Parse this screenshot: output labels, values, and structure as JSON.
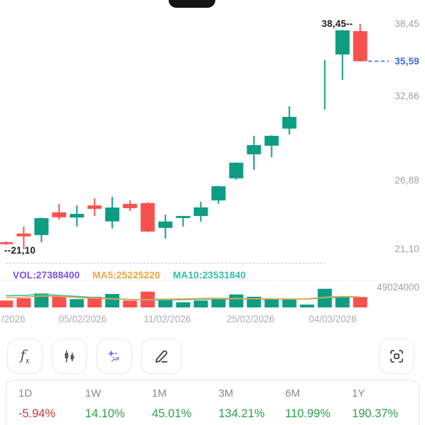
{
  "device": {
    "notch_icon": "phone-notch"
  },
  "indicators": {
    "vol_text": "VOL:27388400",
    "ma5_text": "MA5:25225220",
    "ma10_text": "MA10:23531840"
  },
  "axis": {
    "price_labels": [
      "38,45",
      "35,59",
      "32,66",
      "26,88",
      "21,10"
    ],
    "current_price_label": "35,59",
    "high_marker": "38,45--",
    "low_marker": "--21,10",
    "volume_max_label": "49024000",
    "dates": [
      "/2026",
      "05/02/2026",
      "11/02/2026",
      "25/02/2026",
      "04/03/2026"
    ]
  },
  "chart_data": {
    "type": "candlestick+volume",
    "price_max": 38.45,
    "price_min": 21.1,
    "current_price": 35.59,
    "volume_max": 49024000,
    "colors": {
      "up": "#0e9c82",
      "down": "#f7514f",
      "ma5": "#f1a43d",
      "ma10": "#2fbfae",
      "vol_label": "#7d4ff5",
      "current_price": "#3a67e0"
    },
    "candles": [
      {
        "o": 21.65,
        "h": 21.72,
        "l": 21.45,
        "c": 21.5,
        "dir": "down",
        "v": 18100000
      },
      {
        "o": 22.32,
        "h": 22.85,
        "l": 21.1,
        "c": 22.1,
        "dir": "down",
        "v": 24200000
      },
      {
        "o": 22.2,
        "h": 23.55,
        "l": 21.65,
        "c": 23.5,
        "dir": "up",
        "v": 36700000
      },
      {
        "o": 23.95,
        "h": 24.6,
        "l": 23.4,
        "c": 23.57,
        "dir": "down",
        "v": 29300000
      },
      {
        "o": 23.55,
        "h": 24.48,
        "l": 22.85,
        "c": 23.83,
        "dir": "up",
        "v": 21800000
      },
      {
        "o": 24.48,
        "h": 25.03,
        "l": 23.67,
        "c": 24.22,
        "dir": "down",
        "v": 28000000
      },
      {
        "o": 23.25,
        "h": 25.14,
        "l": 22.7,
        "c": 24.32,
        "dir": "up",
        "v": 35400000
      },
      {
        "o": 24.6,
        "h": 24.86,
        "l": 24.05,
        "c": 24.27,
        "dir": "down",
        "v": 18100000
      },
      {
        "o": 24.66,
        "h": 24.72,
        "l": 22.42,
        "c": 22.47,
        "dir": "down",
        "v": 41600000
      },
      {
        "o": 22.75,
        "h": 23.77,
        "l": 21.93,
        "c": 23.24,
        "dir": "up",
        "v": 22900000
      },
      {
        "o": 23.51,
        "h": 23.68,
        "l": 22.86,
        "c": 23.67,
        "dir": "up",
        "v": 13600000
      },
      {
        "o": 23.67,
        "h": 24.76,
        "l": 23.24,
        "c": 24.33,
        "dir": "up",
        "v": 18100000
      },
      {
        "o": 24.87,
        "h": 26.0,
        "l": 24.6,
        "c": 25.96,
        "dir": "up",
        "v": 24200000
      },
      {
        "o": 26.57,
        "h": 27.8,
        "l": 26.45,
        "c": 27.77,
        "dir": "up",
        "v": 34100000
      },
      {
        "o": 28.42,
        "h": 29.84,
        "l": 27.22,
        "c": 29.13,
        "dir": "up",
        "v": 28000000
      },
      {
        "o": 29.08,
        "h": 29.88,
        "l": 28.2,
        "c": 29.84,
        "dir": "up",
        "v": 22900000
      },
      {
        "o": 30.4,
        "h": 32.12,
        "l": 29.95,
        "c": 31.3,
        "dir": "up",
        "v": 21800000
      },
      {
        "gap": true,
        "dir": "up",
        "v": 7500000
      },
      {
        "o": 35.66,
        "h": 35.68,
        "l": 31.86,
        "c": 35.62,
        "dir": "up",
        "v": 49024000,
        "thin": true
      },
      {
        "o": 36.11,
        "h": 38.0,
        "l": 34.15,
        "c": 37.97,
        "dir": "up",
        "v": 26100000
      },
      {
        "o": 37.91,
        "h": 38.45,
        "l": 35.55,
        "c": 35.59,
        "dir": "down",
        "v": 27388400
      }
    ],
    "ma5_volume": [
      26100000,
      27000000,
      30000000,
      29000000,
      26000000,
      24000000,
      22500000,
      20500000,
      20500000,
      21500000,
      22500000,
      23500000,
      24000000,
      23500000,
      23000000,
      22500000,
      22000000,
      22500000,
      27000000,
      29000000,
      27500000
    ],
    "ma10_volume": [
      30800000,
      31500000,
      34500000,
      31500000,
      29000000,
      26000000,
      23500000,
      21000000,
      19500000,
      19500000,
      20500000,
      21500000,
      22000000,
      22500000,
      22500000,
      22000000,
      21500000,
      22000000,
      25000000,
      27000000,
      27500000
    ]
  },
  "toolbar": {
    "fx_f": "f",
    "fx_x": "x",
    "buttons": [
      {
        "icon": "fx-icon"
      },
      {
        "icon": "candlestick-icon"
      },
      {
        "icon": "sparkle-icon"
      },
      {
        "icon": "pencil-icon"
      },
      {
        "icon": "fullscreen-icon"
      }
    ]
  },
  "periods": {
    "tabs": [
      {
        "label": "1D",
        "value": "-5.94%",
        "direction": "down"
      },
      {
        "label": "1W",
        "value": "14.10%",
        "direction": "up"
      },
      {
        "label": "1M",
        "value": "45.01%",
        "direction": "up"
      },
      {
        "label": "3M",
        "value": "134.21%",
        "direction": "up"
      },
      {
        "label": "6M",
        "value": "110.99%",
        "direction": "up"
      },
      {
        "label": "1Y",
        "value": "190.37%",
        "direction": "up"
      }
    ]
  }
}
